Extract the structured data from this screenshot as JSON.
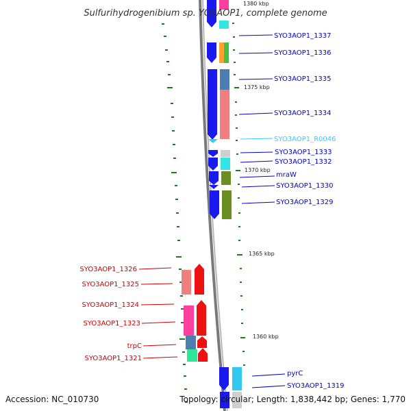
{
  "title": "Sulfurihydrogenibium sp. YO3AOP1, complete genome",
  "accession": "Accession: NC_010730",
  "topology": "Topology: circular; Length: 1,838,442 bp; Genes: 1,770",
  "colors": {
    "forward_label": "#0000cc",
    "reverse_label": "#cc0000",
    "rna_label": "#33ccff",
    "tick": "#1a7a1a",
    "backbone": "#888888"
  },
  "scale_labels": [
    {
      "id": "k1380",
      "text": "1380 kbp"
    },
    {
      "id": "k1375",
      "text": "1375 kbp"
    },
    {
      "id": "k1370",
      "text": "1370 kbp"
    },
    {
      "id": "k1365",
      "text": "1365 kbp"
    },
    {
      "id": "k1360",
      "text": "1360 kbp"
    }
  ],
  "genes_forward": [
    {
      "id": "g1337",
      "label": "SYO3AOP1_1337"
    },
    {
      "id": "g1336",
      "label": "SYO3AOP1_1336"
    },
    {
      "id": "g1335",
      "label": "SYO3AOP1_1335"
    },
    {
      "id": "g1334",
      "label": "SYO3AOP1_1334"
    },
    {
      "id": "gR0046",
      "label": "SYO3AOP1_R0046"
    },
    {
      "id": "g1333",
      "label": "SYO3AOP1_1333"
    },
    {
      "id": "g1332",
      "label": "SYO3AOP1_1332"
    },
    {
      "id": "gmraW",
      "label": "mraW"
    },
    {
      "id": "g1330",
      "label": "SYO3AOP1_1330"
    },
    {
      "id": "g1329",
      "label": "SYO3AOP1_1329"
    },
    {
      "id": "gpyrC",
      "label": "pyrC"
    },
    {
      "id": "g1319",
      "label": "SYO3AOP1_1319"
    }
  ],
  "genes_reverse": [
    {
      "id": "g1326",
      "label": "SYO3AOP1_1326"
    },
    {
      "id": "g1325",
      "label": "SYO3AOP1_1325"
    },
    {
      "id": "g1324",
      "label": "SYO3AOP1_1324"
    },
    {
      "id": "g1323",
      "label": "SYO3AOP1_1323"
    },
    {
      "id": "gtrpC",
      "label": "trpC"
    },
    {
      "id": "g1321",
      "label": "SYO3AOP1_1321"
    }
  ]
}
